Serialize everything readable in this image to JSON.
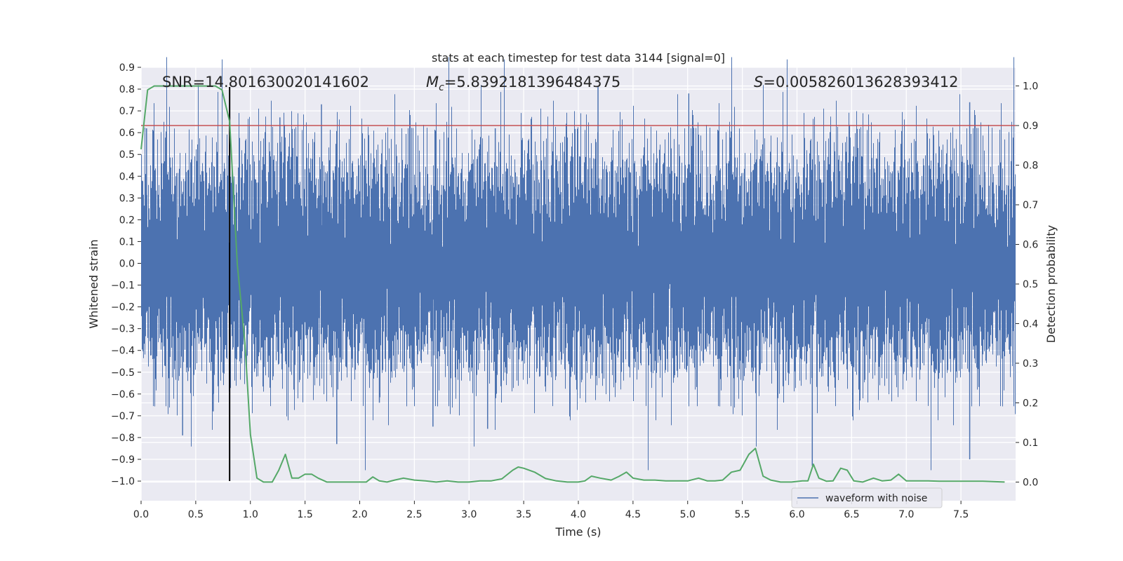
{
  "chart_data": {
    "type": "line",
    "title": "stats at each timestep for test data 3144 [signal=0]",
    "xlabel": "Time (s)",
    "ylabel": "Whitened strain",
    "y2label": "Detection probability",
    "xlim": [
      0.0,
      8.0
    ],
    "ylim": [
      -1.09,
      0.9
    ],
    "y2lim": [
      -0.047,
      1.047
    ],
    "x_ticks": [
      "0.0",
      "0.5",
      "1.0",
      "1.5",
      "2.0",
      "2.5",
      "3.0",
      "3.5",
      "4.0",
      "4.5",
      "5.0",
      "5.5",
      "6.0",
      "6.5",
      "7.0",
      "7.5"
    ],
    "y_ticks": [
      "0.9",
      "0.8",
      "0.7",
      "0.6",
      "0.5",
      "0.4",
      "0.3",
      "0.2",
      "0.1",
      "0.0",
      "−0.1",
      "−0.2",
      "−0.3",
      "−0.4",
      "−0.5",
      "−0.6",
      "−0.7",
      "−0.8",
      "−0.9",
      "−1.0"
    ],
    "y2_ticks": [
      "1.0",
      "0.9",
      "0.8",
      "0.7",
      "0.6",
      "0.5",
      "0.4",
      "0.3",
      "0.2",
      "0.1",
      "0.0"
    ],
    "annotations": {
      "snr": "SNR=14.801630020141602",
      "mc_symbol": "M",
      "mc_sub": "c",
      "mc_value": "=5.8392181396484375",
      "s_symbol": "S",
      "s_value": "=0.005826013628393412"
    },
    "threshold": {
      "value": 0.9,
      "axis": "right",
      "color": "#c44e52"
    },
    "marker_line": {
      "x": 0.81,
      "y_from": -1.0,
      "y_to": 0.81,
      "color": "#000000"
    },
    "grid": true,
    "legend": {
      "position": "lower-right",
      "entries": [
        "waveform with noise"
      ]
    },
    "series": [
      {
        "name": "waveform with noise",
        "axis": "left",
        "color": "#4c72b0",
        "description_note": "dense whitened strain noise, core amplitude approx ±0.45, spikes to 0.81 and -0.93",
        "sample_rate_hz": 2048,
        "core_amplitude": 0.45,
        "peaks": [
          [
            0.05,
            0.62
          ],
          [
            0.38,
            -0.79
          ],
          [
            0.66,
            -0.68
          ],
          [
            1.27,
            0.67
          ],
          [
            1.65,
            0.73
          ],
          [
            1.79,
            -0.83
          ],
          [
            2.18,
            -0.64
          ],
          [
            2.67,
            -0.75
          ],
          [
            3.17,
            -0.76
          ],
          [
            3.24,
            0.62
          ],
          [
            4.18,
            0.81
          ],
          [
            5.01,
            0.78
          ],
          [
            6.14,
            -0.93
          ],
          [
            7.58,
            -0.9
          ],
          [
            7.58,
            0.74
          ]
        ]
      },
      {
        "name": "",
        "axis": "right",
        "color": "#55a868",
        "x": [
          0.0,
          0.06,
          0.12,
          0.2,
          0.3,
          0.4,
          0.5,
          0.6,
          0.68,
          0.74,
          0.81,
          0.88,
          0.95,
          1.0,
          1.06,
          1.12,
          1.2,
          1.26,
          1.32,
          1.38,
          1.44,
          1.5,
          1.56,
          1.62,
          1.7,
          1.8,
          1.9,
          2.0,
          2.06,
          2.12,
          2.18,
          2.25,
          2.32,
          2.4,
          2.5,
          2.6,
          2.7,
          2.8,
          2.9,
          3.0,
          3.1,
          3.2,
          3.3,
          3.4,
          3.45,
          3.5,
          3.6,
          3.7,
          3.8,
          3.9,
          4.0,
          4.06,
          4.12,
          4.2,
          4.3,
          4.37,
          4.44,
          4.5,
          4.6,
          4.7,
          4.8,
          4.9,
          5.0,
          5.1,
          5.18,
          5.25,
          5.32,
          5.4,
          5.48,
          5.56,
          5.62,
          5.69,
          5.76,
          5.85,
          5.95,
          6.05,
          6.1,
          6.15,
          6.2,
          6.27,
          6.33,
          6.4,
          6.46,
          6.52,
          6.6,
          6.7,
          6.78,
          6.86,
          6.93,
          7.0,
          7.1,
          7.2,
          7.3,
          7.5,
          7.7,
          7.9
        ],
        "y": [
          0.84,
          0.99,
          1.0,
          1.0,
          1.0,
          1.0,
          1.0,
          1.0,
          1.0,
          0.99,
          0.91,
          0.55,
          0.35,
          0.12,
          0.01,
          0.0,
          0.0,
          0.03,
          0.07,
          0.01,
          0.01,
          0.02,
          0.02,
          0.01,
          0.0,
          0.0,
          0.0,
          0.0,
          0.0,
          0.013,
          0.003,
          0.0,
          0.005,
          0.01,
          0.005,
          0.003,
          0.0,
          0.003,
          0.0,
          0.0,
          0.003,
          0.003,
          0.008,
          0.03,
          0.038,
          0.035,
          0.025,
          0.009,
          0.003,
          0.0,
          0.0,
          0.003,
          0.015,
          0.01,
          0.005,
          0.014,
          0.025,
          0.01,
          0.005,
          0.005,
          0.003,
          0.003,
          0.003,
          0.01,
          0.003,
          0.003,
          0.005,
          0.025,
          0.03,
          0.07,
          0.085,
          0.015,
          0.005,
          0.0,
          0.0,
          0.003,
          0.003,
          0.045,
          0.01,
          0.002,
          0.003,
          0.035,
          0.03,
          0.003,
          0.0,
          0.01,
          0.003,
          0.005,
          0.02,
          0.003,
          0.003,
          0.003,
          0.002,
          0.002,
          0.002,
          0.0
        ]
      }
    ]
  }
}
